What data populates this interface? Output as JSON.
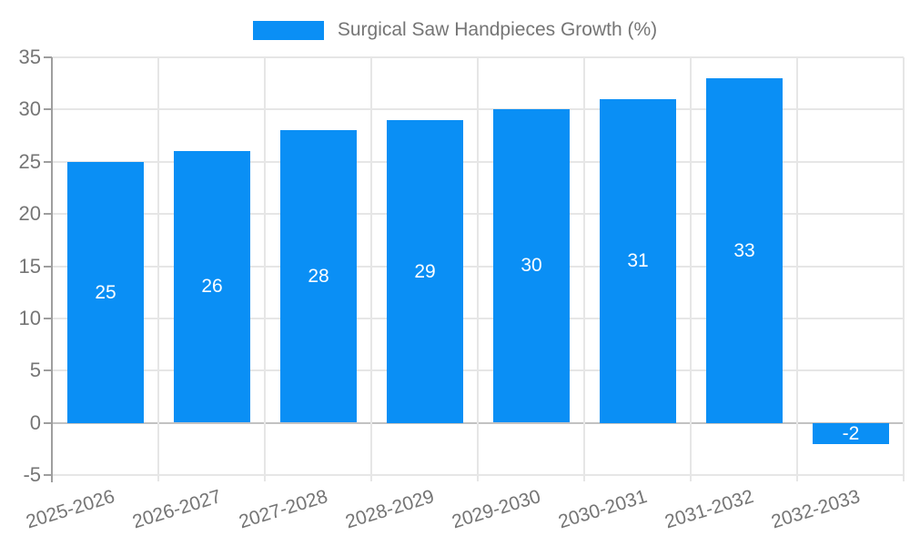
{
  "legend": {
    "position": "top"
  },
  "chart_data": {
    "type": "bar",
    "title": "Surgical Saw Handpieces Growth (%)",
    "series_name": "Surgical Saw Handpieces Growth (%)",
    "categories": [
      "2025-2026",
      "2026-2027",
      "2027-2028",
      "2028-2029",
      "2029-2030",
      "2030-2031",
      "2031-2032",
      "2032-2033"
    ],
    "values": [
      25,
      26,
      28,
      29,
      30,
      31,
      33,
      -2
    ],
    "value_labels": [
      "25",
      "26",
      "28",
      "29",
      "30",
      "31",
      "33",
      "-2"
    ],
    "xlabel": "",
    "ylabel": "",
    "ylim": [
      -5,
      35
    ],
    "yticks": [
      35,
      30,
      25,
      20,
      15,
      10,
      5,
      0,
      -5
    ],
    "grid": "on",
    "legend_position": "top",
    "bar_color": "#0a8ff5",
    "value_label_color": "#ffffff",
    "axis_text_color": "#757575",
    "gridline_color": "#e6e6e6",
    "zero_line_color": "#c2c2c2",
    "axis_line_color": "#9e9e9e"
  }
}
